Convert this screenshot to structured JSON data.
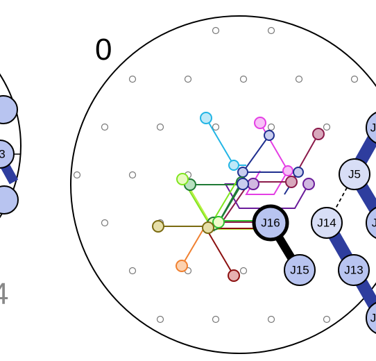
{
  "panels": [
    {
      "label": "0"
    },
    {
      "label": "4"
    }
  ],
  "junctions": {
    "J5": "J5",
    "J13": "J13",
    "J14": "J14",
    "J15": "J15",
    "J16": "J16",
    "J_top_right": "J",
    "J_mid_right": "J",
    "J_bot_right": "J",
    "J_left_3": "3"
  },
  "colors": {
    "node_fill": "#b8c4f0",
    "node_fill_light": "#d8def6",
    "trunk": "#2e3d9e",
    "cyan": "#22b5e5",
    "magenta": "#e43ee4",
    "navy": "#1f2f8f",
    "maroon": "#8b1a4a",
    "purple": "#6a1b9a",
    "green": "#1f7a35",
    "lime": "#7fe51f",
    "olive": "#7a6a10",
    "orange": "#f08030",
    "darkred": "#8b1010"
  }
}
